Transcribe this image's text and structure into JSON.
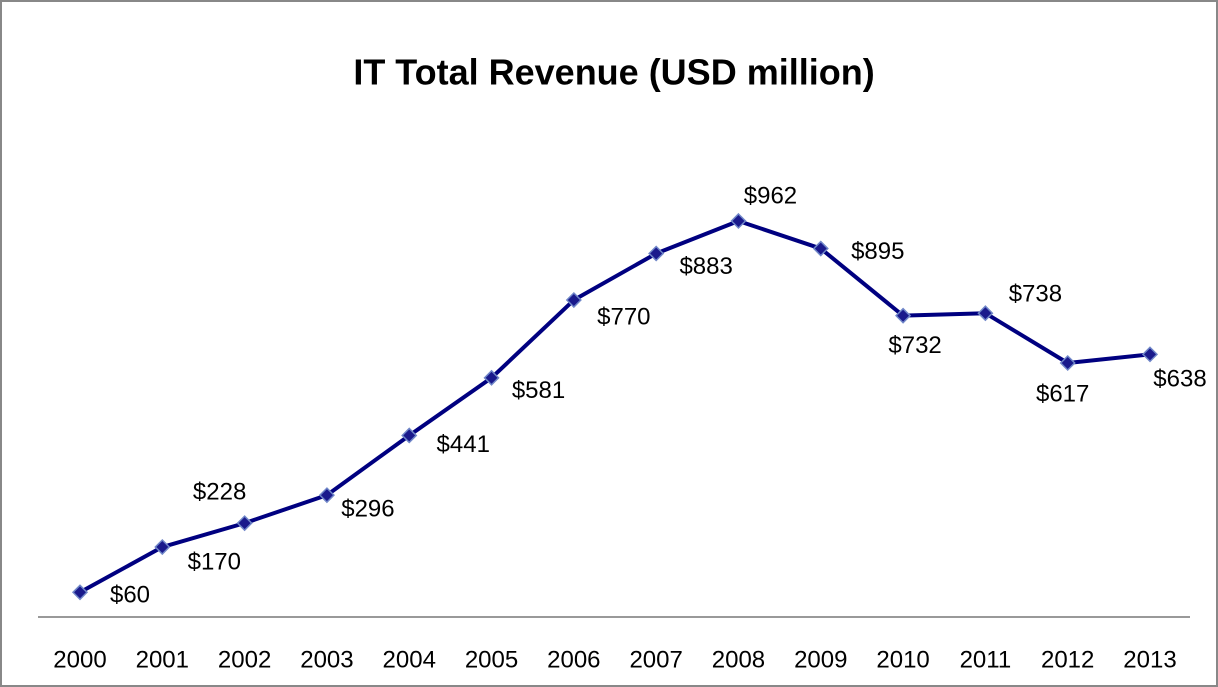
{
  "chart_data": {
    "type": "line",
    "title": "IT Total Revenue (USD million)",
    "categories": [
      "2000",
      "2001",
      "2002",
      "2003",
      "2004",
      "2005",
      "2006",
      "2007",
      "2008",
      "2009",
      "2010",
      "2011",
      "2012",
      "2013"
    ],
    "series": [
      {
        "color": "#000080",
        "values": [
          60,
          170,
          228,
          296,
          441,
          581,
          770,
          883,
          962,
          895,
          732,
          738,
          617,
          638
        ],
        "value_labels": [
          "$60",
          "$170",
          "$228",
          "$296",
          "$441",
          "$581",
          "$770",
          "$883",
          "$962",
          "$895",
          "$732",
          "$738",
          "$617",
          "$638"
        ]
      }
    ],
    "ylim": [
      0,
      1200
    ]
  }
}
